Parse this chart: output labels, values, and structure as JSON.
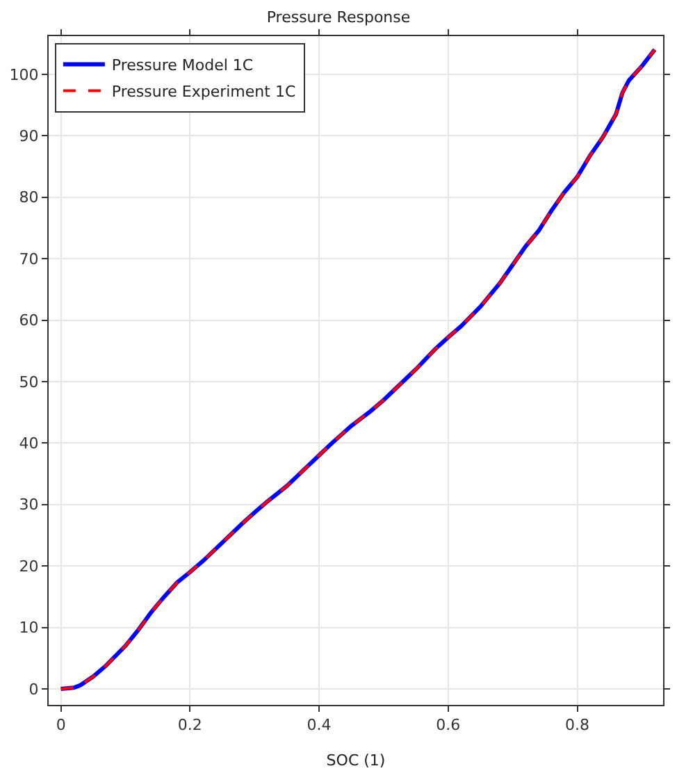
{
  "chart_data": {
    "type": "line",
    "title": "Pressure Response",
    "xlabel": "SOC (1)",
    "x": [
      0,
      0.02,
      0.03,
      0.05,
      0.07,
      0.1,
      0.12,
      0.14,
      0.16,
      0.18,
      0.2,
      0.22,
      0.25,
      0.28,
      0.3,
      0.32,
      0.35,
      0.38,
      0.4,
      0.42,
      0.45,
      0.48,
      0.5,
      0.52,
      0.55,
      0.58,
      0.6,
      0.62,
      0.65,
      0.68,
      0.7,
      0.72,
      0.74,
      0.76,
      0.78,
      0.8,
      0.82,
      0.84,
      0.86,
      0.87,
      0.88,
      0.9,
      0.92
    ],
    "series": [
      {
        "name": "Pressure Model 1C",
        "color": "#0000ff",
        "line_style": "solid",
        "values": [
          0,
          0.2,
          0.6,
          2,
          3.8,
          7,
          9.6,
          12.5,
          15,
          17.3,
          19,
          20.8,
          23.8,
          26.8,
          28.7,
          30.5,
          33,
          36,
          38,
          40,
          42.8,
          45.2,
          47,
          49,
          52,
          55.3,
          57.2,
          59,
          62.2,
          66,
          69,
          72,
          74.5,
          77.8,
          80.8,
          83.3,
          86.8,
          89.8,
          93.5,
          97,
          99,
          101.3,
          104
        ]
      },
      {
        "name": "Pressure Experiment 1C",
        "color": "#ff0000",
        "line_style": "dashed",
        "values": [
          0,
          0.2,
          0.6,
          2,
          3.8,
          7,
          9.6,
          12.5,
          15,
          17.3,
          19,
          20.8,
          23.8,
          26.8,
          28.7,
          30.5,
          33,
          36,
          38,
          40,
          42.8,
          45.2,
          47,
          49,
          52,
          55.3,
          57.2,
          59,
          62.2,
          66,
          69,
          72,
          74.5,
          77.8,
          80.8,
          83.3,
          86.8,
          89.8,
          93.5,
          97,
          99,
          101.3,
          104
        ]
      }
    ],
    "xlim": [
      -0.019,
      0.933
    ],
    "ylim": [
      -2.6,
      106.2
    ],
    "xticks": [
      0,
      0.2,
      0.4,
      0.6,
      0.8
    ],
    "yticks": [
      0,
      10,
      20,
      30,
      40,
      50,
      60,
      70,
      80,
      90,
      100
    ],
    "grid": true,
    "legend": "top left",
    "marker": "none"
  }
}
